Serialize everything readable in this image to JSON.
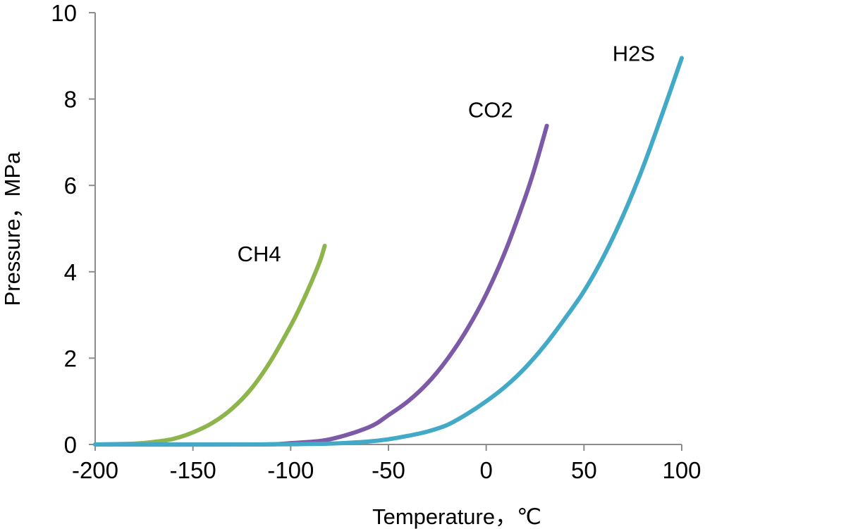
{
  "chart_data": {
    "type": "line",
    "title": "",
    "xlabel": "Temperature，℃",
    "ylabel": "Pressure，MPa",
    "xlim": [
      -200,
      100
    ],
    "ylim": [
      0,
      10
    ],
    "x_ticks": [
      -200,
      -150,
      -100,
      -50,
      0,
      50,
      100
    ],
    "y_ticks": [
      0,
      2,
      4,
      6,
      8,
      10
    ],
    "x_tick_labels": [
      "-200",
      "-150",
      "-100",
      "-50",
      "0",
      "50",
      "100"
    ],
    "y_tick_labels": [
      "0",
      "2",
      "4",
      "6",
      "8",
      "10"
    ],
    "grid": false,
    "legend": "none",
    "series": [
      {
        "name": "CH4",
        "color": "#8db54b",
        "x": [
          -200,
          -180,
          -170,
          -160,
          -150,
          -140,
          -130,
          -120,
          -110,
          -100,
          -95,
          -90,
          -85,
          -82.6
        ],
        "y": [
          0.0,
          0.02,
          0.06,
          0.13,
          0.28,
          0.5,
          0.83,
          1.3,
          1.95,
          2.75,
          3.2,
          3.7,
          4.25,
          4.6
        ]
      },
      {
        "name": "CO2",
        "color": "#7c5aa8",
        "x": [
          -200,
          -120,
          -100,
          -80,
          -60,
          -50,
          -40,
          -30,
          -20,
          -10,
          0,
          10,
          20,
          25,
          31
        ],
        "y": [
          0.0,
          0.0,
          0.03,
          0.12,
          0.4,
          0.68,
          1.0,
          1.42,
          1.97,
          2.65,
          3.48,
          4.5,
          5.73,
          6.43,
          7.38
        ]
      },
      {
        "name": "H2S",
        "color": "#42a9c6",
        "x": [
          -200,
          -120,
          -80,
          -60,
          -50,
          -40,
          -30,
          -20,
          -10,
          0,
          10,
          20,
          30,
          40,
          50,
          60,
          70,
          80,
          90,
          100
        ],
        "y": [
          0.0,
          0.0,
          0.02,
          0.07,
          0.12,
          0.2,
          0.3,
          0.45,
          0.7,
          1.0,
          1.35,
          1.78,
          2.3,
          2.9,
          3.55,
          4.35,
          5.3,
          6.4,
          7.65,
          8.95
        ]
      }
    ]
  }
}
